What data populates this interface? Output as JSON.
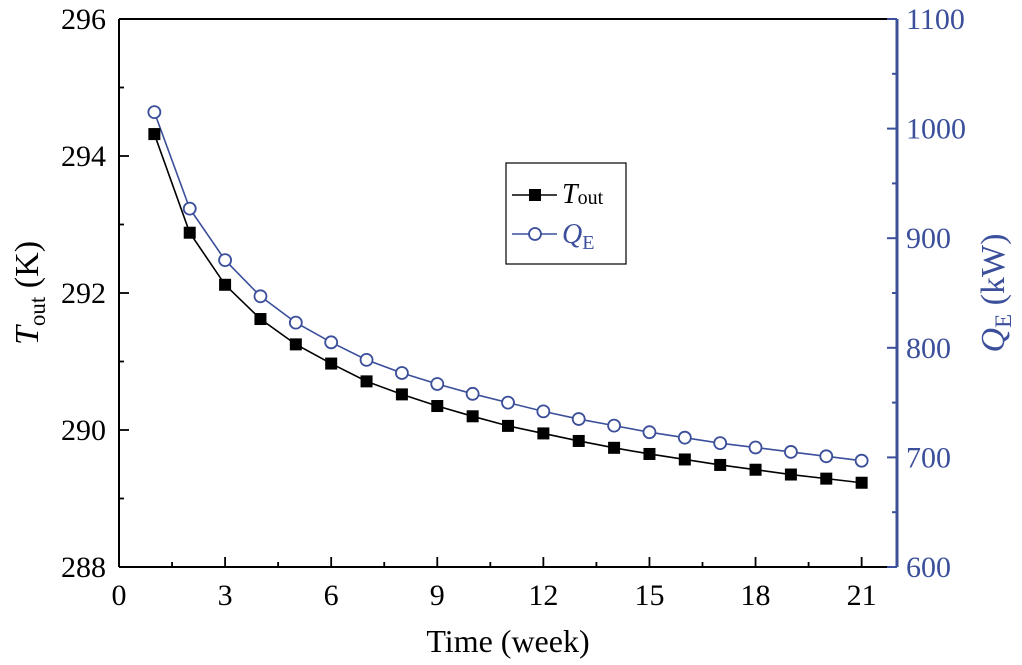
{
  "chart_data": {
    "type": "line",
    "title": "",
    "x": [
      1,
      2,
      3,
      4,
      5,
      6,
      7,
      8,
      9,
      10,
      11,
      12,
      13,
      14,
      15,
      16,
      17,
      18,
      19,
      20,
      21
    ],
    "xlabel": "Time (week)",
    "xlim": [
      0,
      22
    ],
    "xticks": [
      "0",
      "3",
      "6",
      "9",
      "12",
      "15",
      "18",
      "21"
    ],
    "xtick_values": [
      0,
      3,
      6,
      9,
      12,
      15,
      18,
      21
    ],
    "grid": false,
    "legend_placement": "center",
    "left_axis": {
      "label_main": "T",
      "label_sub": "out",
      "label_unit": " (K)",
      "ylim": [
        288,
        296
      ],
      "ticks": [
        "288",
        "290",
        "292",
        "294",
        "296"
      ],
      "tick_values": [
        288,
        290,
        292,
        294,
        296
      ],
      "color": "#000000"
    },
    "right_axis": {
      "label_main": "Q",
      "label_sub": "E",
      "label_unit": " (kW)",
      "ylim": [
        600,
        1100
      ],
      "ticks": [
        "600",
        "700",
        "800",
        "900",
        "1000",
        "1100"
      ],
      "tick_values": [
        600,
        700,
        800,
        900,
        1000,
        1100
      ],
      "color": "#3b4f9a"
    },
    "series": [
      {
        "name_main": "T",
        "name_sub": "out",
        "axis": "left",
        "marker": "filled-square",
        "color": "#000000",
        "values": [
          294.32,
          292.88,
          292.12,
          291.62,
          291.25,
          290.97,
          290.71,
          290.52,
          290.35,
          290.2,
          290.06,
          289.95,
          289.84,
          289.74,
          289.65,
          289.57,
          289.49,
          289.42,
          289.35,
          289.29,
          289.23
        ]
      },
      {
        "name_main": "Q",
        "name_sub": "E",
        "axis": "right",
        "marker": "open-circle",
        "color": "#3b4f9a",
        "values": [
          1015,
          927,
          880,
          847,
          823,
          805,
          789,
          777,
          767,
          758,
          750,
          742,
          735,
          729,
          723,
          718,
          713,
          709,
          705,
          701,
          697
        ]
      }
    ]
  }
}
